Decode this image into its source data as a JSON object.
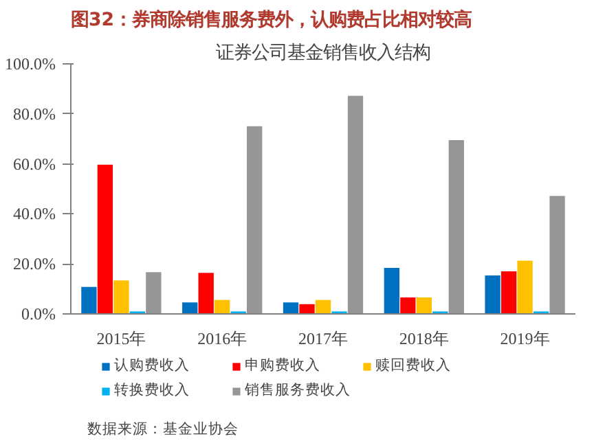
{
  "chart_data": {
    "type": "bar",
    "title": "图32：券商除销售服务费外，认购费占比相对较高",
    "subtitle": "证券公司基金销售收入结构",
    "categories": [
      "2015年",
      "2016年",
      "2017年",
      "2018年",
      "2019年"
    ],
    "series": [
      {
        "name": "认购费收入",
        "color": "#0070c0",
        "values": [
          10.8,
          4.6,
          4.6,
          18.4,
          15.4
        ]
      },
      {
        "name": "申购费收入",
        "color": "#ff0000",
        "values": [
          59.7,
          16.4,
          3.9,
          6.6,
          17.0
        ]
      },
      {
        "name": "赎回费收入",
        "color": "#ffc000",
        "values": [
          13.4,
          5.6,
          5.6,
          6.6,
          21.3
        ]
      },
      {
        "name": "转换费收入",
        "color": "#00b0f0",
        "values": [
          1.0,
          1.0,
          1.0,
          1.0,
          1.0
        ]
      },
      {
        "name": "销售服务费收入",
        "color": "#969696",
        "values": [
          16.7,
          75.1,
          87.2,
          69.5,
          47.2
        ]
      }
    ],
    "ylim": [
      0,
      100
    ],
    "yticks": [
      {
        "value": 0,
        "label": "0.0%"
      },
      {
        "value": 20,
        "label": "20.0%"
      },
      {
        "value": 40,
        "label": "40.0%"
      },
      {
        "value": 60,
        "label": "60.0%"
      },
      {
        "value": 80,
        "label": "80.0%"
      },
      {
        "value": 100,
        "label": "100.0%"
      }
    ],
    "grid": false,
    "legend": "bottom",
    "annotations": [
      "数据来源：基金业协会"
    ]
  }
}
